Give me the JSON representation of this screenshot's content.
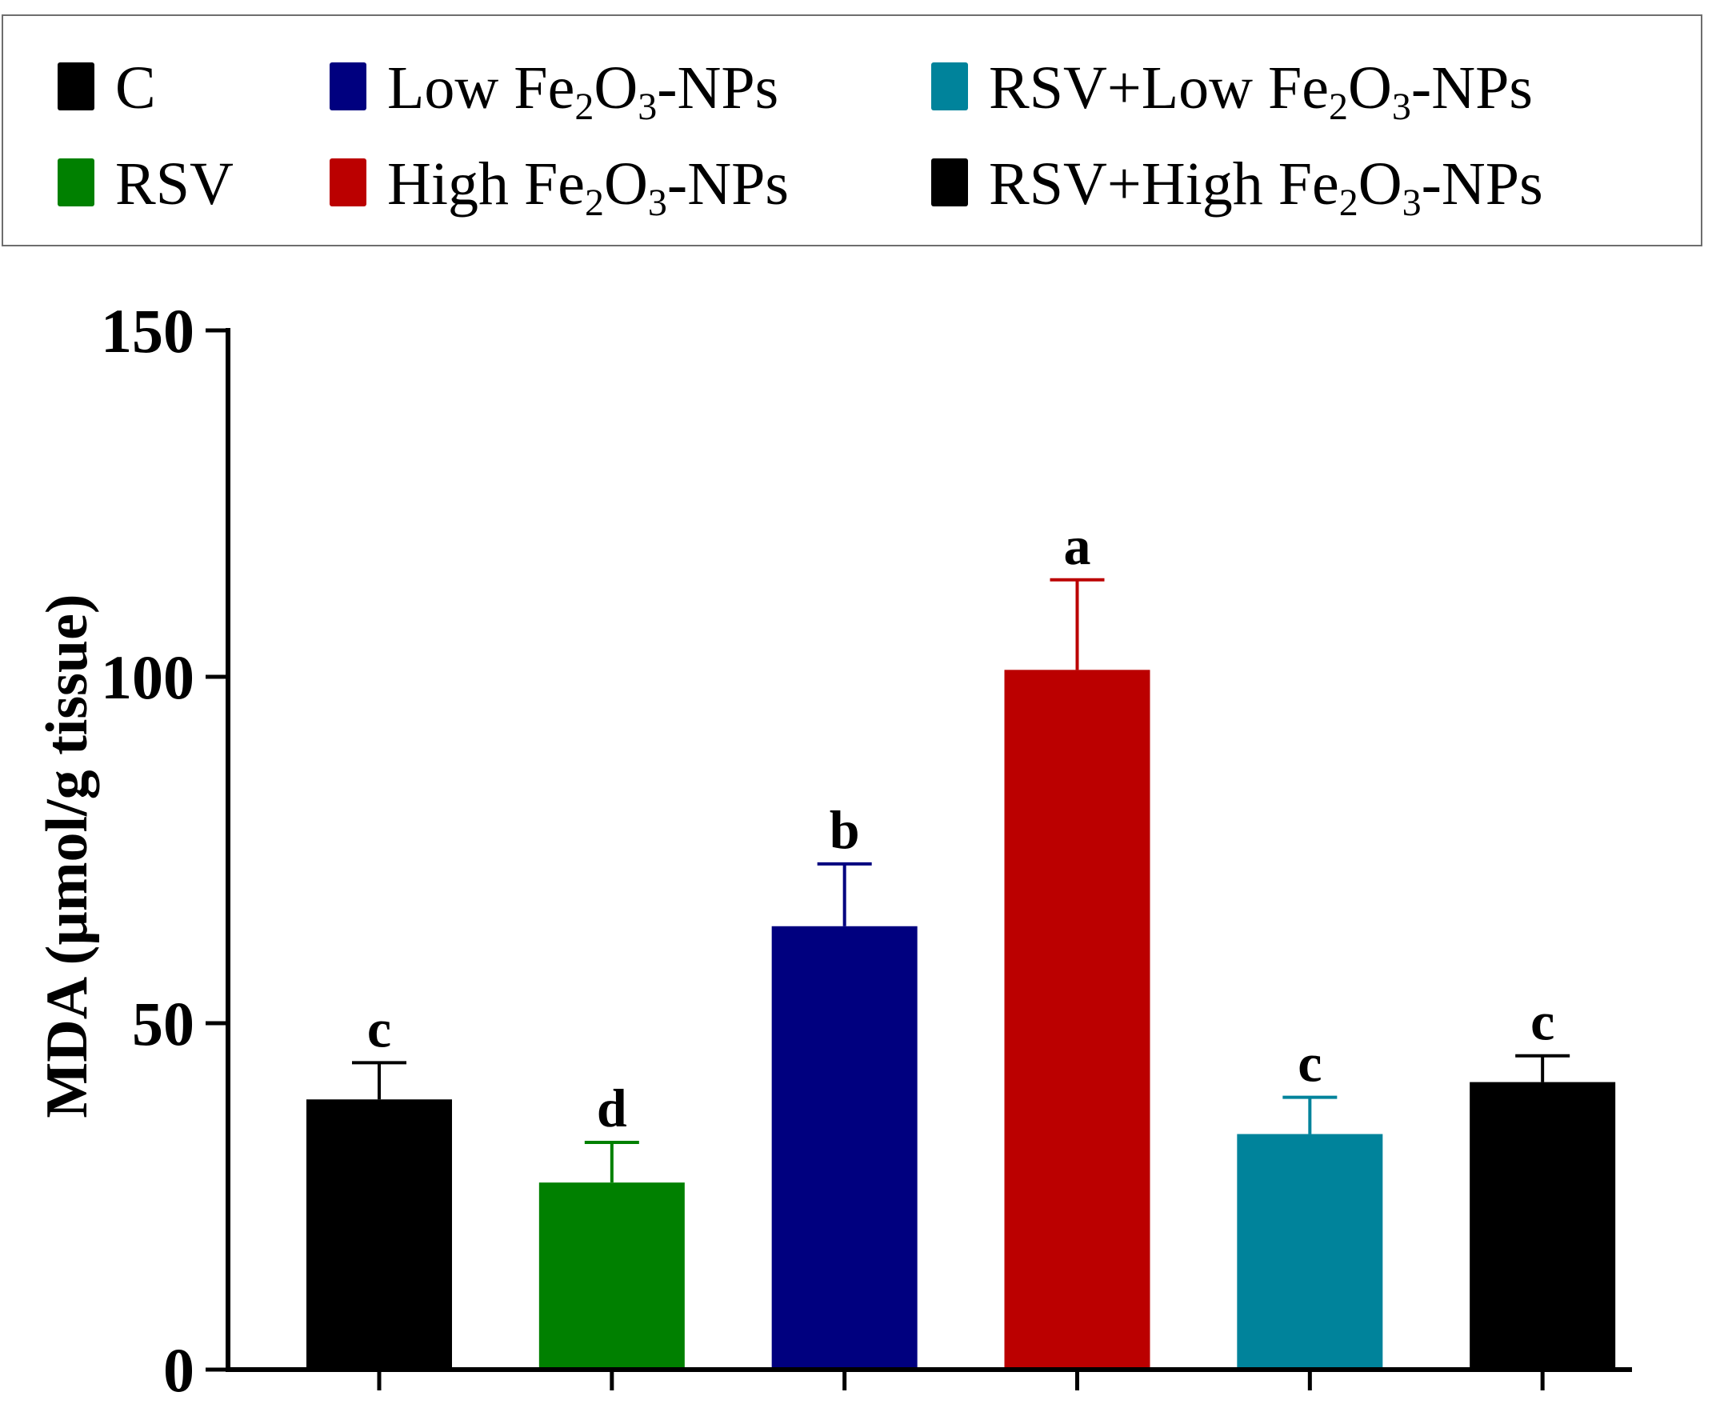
{
  "legend": {
    "items": [
      {
        "name": "C",
        "color": "#000000"
      },
      {
        "name": "Low Fe2O3-NPs",
        "color": "#00007f"
      },
      {
        "name": "RSV+Low Fe2O3-NPs",
        "color": "#00839b"
      },
      {
        "name": "RSV",
        "color": "#008000"
      },
      {
        "name": "High Fe2O3-NPs",
        "color": "#bb0000"
      },
      {
        "name": "RSV+High Fe2O3-NPs",
        "color": "#000000"
      }
    ]
  },
  "chart_data": {
    "type": "bar",
    "title": "",
    "xlabel": "",
    "ylabel": "MDA (µmol/g tissue)",
    "ylim": [
      0,
      150
    ],
    "yticks": [
      0,
      50,
      100,
      150
    ],
    "grid": false,
    "legend_position": "top",
    "categories": [
      "C",
      "RSV",
      "Low Fe2O3-NPs",
      "High Fe2O3-NPs",
      "RSV+Low Fe2O3-NPs",
      "RSV+High Fe2O3-NPs"
    ],
    "values": [
      39,
      27,
      64,
      101,
      34,
      41.5
    ],
    "errors": [
      5.3,
      5.8,
      9,
      13,
      5.3,
      3.8
    ],
    "significance": [
      "c",
      "d",
      "b",
      "a",
      "c",
      "c"
    ],
    "colors": [
      "#000000",
      "#008000",
      "#00007f",
      "#bb0000",
      "#00839b",
      "#000000"
    ]
  }
}
